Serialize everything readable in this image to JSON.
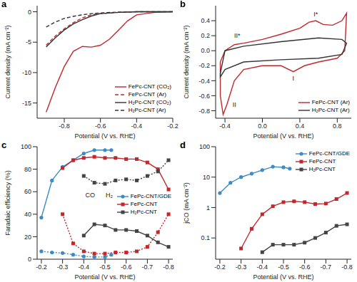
{
  "chart_data": [
    {
      "type": "line",
      "title": "a",
      "x_label": "Potential (V vs. RHE)",
      "y_label": "Current density (mA cm⁻²)",
      "xlim": [
        -0.95,
        -0.2
      ],
      "xticks": [
        -0.8,
        -0.6,
        -0.4,
        -0.2
      ],
      "ylim": [
        -17.5,
        1
      ],
      "yticks": [
        -15,
        -10,
        -5,
        0
      ],
      "legend": "lower right",
      "series": [
        {
          "name": "FePc-CNT (CO₂)",
          "color": "#c0282d",
          "line_style": "solid",
          "x": [
            -0.9,
            -0.85,
            -0.8,
            -0.75,
            -0.7,
            -0.65,
            -0.6,
            -0.55,
            -0.5,
            -0.45,
            -0.4,
            -0.3,
            -0.2
          ],
          "values": [
            -16.5,
            -12.5,
            -9,
            -6.5,
            -5.7,
            -5.8,
            -5.5,
            -4.5,
            -3,
            -1.5,
            -0.5,
            -0.1,
            0
          ]
        },
        {
          "name": "FePc-CNT (Ar)",
          "color": "#c0282d",
          "line_style": "dashed",
          "x": [
            -0.9,
            -0.85,
            -0.8,
            -0.75,
            -0.7,
            -0.65,
            -0.6,
            -0.5,
            -0.4,
            -0.2
          ],
          "values": [
            -5.5,
            -4,
            -2.8,
            -1.8,
            -1,
            -0.5,
            -0.3,
            -0.1,
            0,
            0
          ]
        },
        {
          "name": "H₂Pc-CNT (CO₂)",
          "color": "#333333",
          "line_style": "solid",
          "x": [
            -0.9,
            -0.85,
            -0.8,
            -0.75,
            -0.7,
            -0.65,
            -0.6,
            -0.5,
            -0.4,
            -0.2
          ],
          "values": [
            -5.8,
            -4.3,
            -3,
            -2,
            -1.3,
            -0.7,
            -0.3,
            -0.1,
            0,
            0
          ]
        },
        {
          "name": "H₂Pc-CNT (Ar)",
          "color": "#333333",
          "line_style": "dashed",
          "x": [
            -0.9,
            -0.85,
            -0.8,
            -0.75,
            -0.7,
            -0.65,
            -0.6,
            -0.5,
            -0.4,
            -0.2
          ],
          "values": [
            -2.5,
            -1.7,
            -1.1,
            -0.75,
            -0.5,
            -0.3,
            -0.2,
            -0.05,
            0,
            0
          ]
        }
      ]
    },
    {
      "type": "line",
      "title": "b",
      "x_label": "Potential (V vs. RHE)",
      "y_label": "Current density (mA cm⁻²)",
      "xlim": [
        -0.5,
        0.95
      ],
      "xticks": [
        -0.4,
        {
          "value": 0,
          "label": "0.0"
        },
        0.4,
        0.8
      ],
      "ylim": [
        -0.9,
        0.6
      ],
      "yticks": [
        -0.8,
        -0.6,
        -0.4,
        -0.2,
        {
          "value": 0,
          "label": "0.0"
        },
        0.2,
        0.4
      ],
      "legend": "lower right",
      "annotations": [
        {
          "text": "I*",
          "x": 0.57,
          "y": 0.49
        },
        {
          "text": "II*",
          "x": -0.27,
          "y": 0.2
        },
        {
          "text": "I",
          "x": 0.33,
          "y": -0.37
        },
        {
          "text": "II",
          "x": -0.3,
          "y": -0.72
        }
      ],
      "series": [
        {
          "name": "FePc-CNT (Ar)",
          "color": "#c0282d",
          "line_style": "solid",
          "x": [
            -0.45,
            -0.4,
            -0.3,
            -0.2,
            0,
            0.2,
            0.4,
            0.5,
            0.57,
            0.65,
            0.75,
            0.85,
            0.9,
            0.88,
            0.8,
            0.6,
            0.45,
            0.33,
            0.2,
            0,
            -0.2,
            -0.3,
            -0.38,
            -0.42,
            -0.45,
            -0.45
          ],
          "values": [
            -0.15,
            0,
            0.08,
            0.1,
            0.15,
            0.22,
            0.3,
            0.38,
            0.4,
            0.35,
            0.34,
            0.4,
            0.5,
            0,
            -0.1,
            -0.15,
            -0.2,
            -0.28,
            -0.2,
            -0.2,
            -0.25,
            -0.4,
            -0.72,
            -0.85,
            -0.6,
            -0.15
          ]
        },
        {
          "name": "H₂Pc-CNT (Ar)",
          "color": "#333333",
          "line_style": "solid",
          "x": [
            -0.45,
            -0.4,
            -0.2,
            0.2,
            0.6,
            0.85,
            0.9,
            0.85,
            0.6,
            0.2,
            -0.2,
            -0.4,
            -0.45,
            -0.45
          ],
          "values": [
            -0.3,
            0,
            0.06,
            0.12,
            0.17,
            0.15,
            0.1,
            -0.05,
            -0.1,
            -0.12,
            -0.15,
            -0.25,
            -0.35,
            -0.3
          ]
        }
      ]
    },
    {
      "type": "line",
      "title": "c",
      "x_label": "Potential (V vs. RHE)",
      "y_label": "Faradaic efficiency (%)",
      "xlim": [
        -0.82,
        -0.18
      ],
      "xticks": [
        -0.2,
        -0.3,
        -0.4,
        -0.5,
        -0.6,
        -0.7,
        -0.8
      ],
      "ylim": [
        0,
        100
      ],
      "yticks": [
        0,
        20,
        40,
        60,
        80,
        100
      ],
      "legend": "center right",
      "annotations": [
        {
          "text": "CO",
          "x": -0.43,
          "y": 57
        },
        {
          "text": "H₂",
          "x": -0.52,
          "y": 57
        }
      ],
      "series": [
        {
          "name": "FePc-CNT/GDE",
          "color": "#3b8bc4",
          "marker": "circle",
          "x": [
            -0.2,
            -0.25,
            -0.3,
            -0.35,
            -0.4,
            -0.45,
            -0.5,
            -0.53
          ],
          "values": [
            37,
            70,
            82,
            88,
            94,
            97,
            97,
            97
          ],
          "values_h2": [
            7,
            6,
            5.5,
            4,
            2.5,
            2,
            2,
            4
          ]
        },
        {
          "name": "FePc-CNT",
          "color": "#c0282d",
          "marker": "square",
          "x": [
            -0.3,
            -0.35,
            -0.4,
            -0.45,
            -0.5,
            -0.55,
            -0.6,
            -0.65,
            -0.7,
            -0.75,
            -0.8
          ],
          "values": [
            81,
            88,
            90,
            91,
            90,
            90,
            89,
            89,
            86,
            80,
            62
          ],
          "values_h2": [
            40,
            14,
            7,
            5,
            5,
            6,
            6,
            7,
            11,
            24,
            40
          ]
        },
        {
          "name": "H₂Pc-CNT",
          "color": "#444444",
          "marker": "square",
          "x": [
            -0.4,
            -0.45,
            -0.5,
            -0.55,
            -0.6,
            -0.65,
            -0.7,
            -0.75,
            -0.8
          ],
          "values": [
            21,
            31,
            30,
            26,
            26,
            25,
            21,
            15,
            11
          ],
          "values_h2": [
            74,
            68,
            67,
            70,
            71,
            70,
            74,
            78,
            88
          ]
        }
      ]
    },
    {
      "type": "line",
      "title": "d",
      "x_label": "Potential (V vs. RHE)",
      "y_label": "jCO (mA cm⁻²)",
      "log": "y",
      "xlim": [
        -0.82,
        -0.18
      ],
      "xticks": [
        -0.2,
        -0.3,
        -0.4,
        -0.5,
        -0.6,
        -0.7,
        -0.8
      ],
      "ylim": [
        0.02,
        100
      ],
      "yticks": [
        0.1,
        1,
        10,
        100
      ],
      "legend": "upper right",
      "series": [
        {
          "name": "FePc-CNT/GDE",
          "color": "#3b8bc4",
          "marker": "circle",
          "x": [
            -0.2,
            -0.25,
            -0.3,
            -0.35,
            -0.4,
            -0.45,
            -0.5,
            -0.53
          ],
          "values": [
            3,
            6.5,
            10,
            13,
            17,
            22,
            21,
            19
          ]
        },
        {
          "name": "FePc-CNT",
          "color": "#c0282d",
          "marker": "square",
          "x": [
            -0.3,
            -0.35,
            -0.4,
            -0.45,
            -0.5,
            -0.55,
            -0.6,
            -0.65,
            -0.7,
            -0.75,
            -0.8
          ],
          "values": [
            0.045,
            0.2,
            0.6,
            1.1,
            1.5,
            1.6,
            1.5,
            1.3,
            1.35,
            1.9,
            3
          ]
        },
        {
          "name": "H₂Pc-CNT",
          "color": "#444444",
          "marker": "square",
          "x": [
            -0.4,
            -0.45,
            -0.5,
            -0.55,
            -0.6,
            -0.65,
            -0.7,
            -0.75,
            -0.8
          ],
          "values": [
            0.034,
            0.06,
            0.06,
            0.06,
            0.07,
            0.1,
            0.15,
            0.25,
            0.28
          ]
        }
      ]
    }
  ]
}
